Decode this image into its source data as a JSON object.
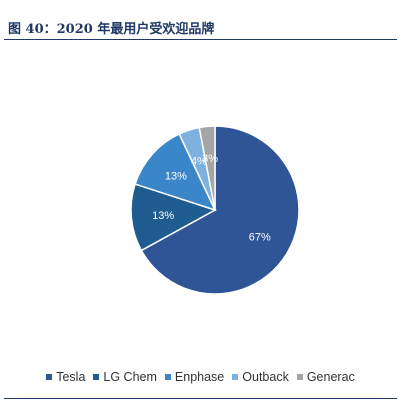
{
  "figure": {
    "title": "图 40：2020 年最用户受欢迎品牌"
  },
  "chart_data": {
    "type": "pie",
    "categories": [
      "Tesla",
      "LG Chem",
      "Enphase",
      "Outback",
      "Generac"
    ],
    "values": [
      67,
      13,
      13,
      4,
      3
    ],
    "value_labels": [
      "67%",
      "13%",
      "13%",
      "4%",
      "3%"
    ],
    "colors": [
      "#2f5597",
      "#1f5c8f",
      "#3a86c8",
      "#7fb1de",
      "#a5a5a5"
    ],
    "start_angle_deg": 0,
    "direction": "clockwise",
    "legend_position": "bottom"
  }
}
